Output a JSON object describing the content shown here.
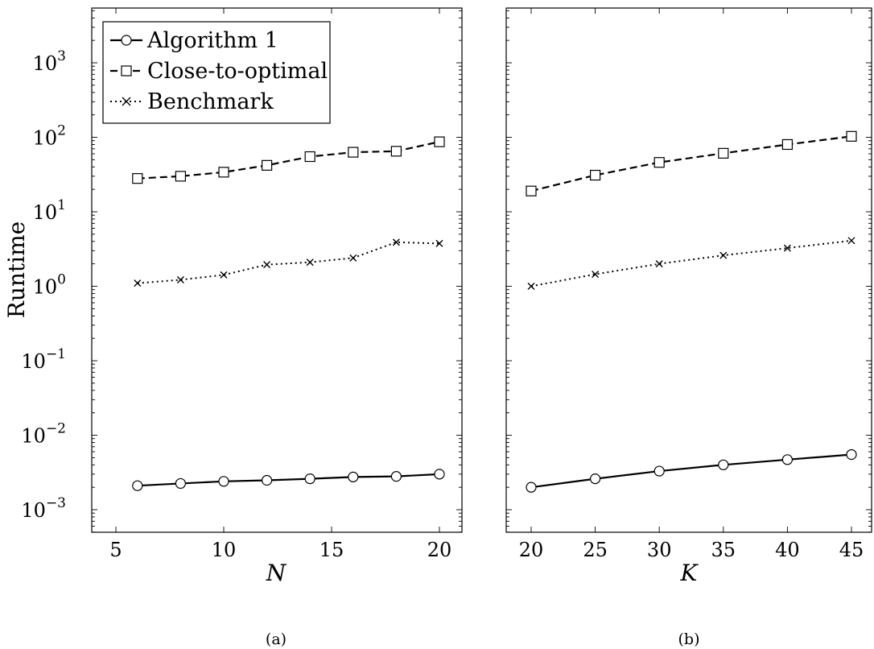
{
  "chart_data": [
    {
      "type": "line",
      "caption": "(a)",
      "xlabel": "N",
      "ylabel": "Runtime",
      "yscale": "log",
      "xlim": [
        4,
        21.5
      ],
      "ylim": [
        0.0003,
        5000
      ],
      "xticks": [
        5,
        10,
        15,
        20
      ],
      "yticks": [
        {
          "base": "10",
          "exp": "3",
          "value": 1000
        },
        {
          "base": "10",
          "exp": "2",
          "value": 100
        },
        {
          "base": "10",
          "exp": "1",
          "value": 10
        },
        {
          "base": "10",
          "exp": "0",
          "value": 1
        },
        {
          "base": "10",
          "exp": "−1",
          "value": 0.1
        },
        {
          "base": "10",
          "exp": "−2",
          "value": 0.01
        },
        {
          "base": "10",
          "exp": "−3",
          "value": 0.001
        }
      ],
      "legend_position": "top-left",
      "x": [
        6,
        8,
        10,
        12,
        14,
        16,
        18,
        20
      ],
      "series": [
        {
          "name": "Algorithm 1",
          "style": "solid",
          "marker": "circle",
          "values": [
            0.0021,
            0.00225,
            0.0024,
            0.00248,
            0.0026,
            0.00275,
            0.0028,
            0.003
          ]
        },
        {
          "name": "Close-to-optimal",
          "style": "dashed",
          "marker": "square",
          "values": [
            28,
            30,
            34,
            42,
            55,
            63,
            65,
            87
          ]
        },
        {
          "name": "Benchmark",
          "style": "dotted",
          "marker": "cross",
          "values": [
            1.1,
            1.22,
            1.42,
            1.95,
            2.1,
            2.4,
            3.9,
            3.75
          ]
        }
      ]
    },
    {
      "type": "line",
      "caption": "(b)",
      "xlabel": "K",
      "ylabel": "",
      "yscale": "log",
      "xlim": [
        18,
        46
      ],
      "ylim": [
        0.0003,
        5000
      ],
      "xticks": [
        20,
        25,
        30,
        35,
        40,
        45
      ],
      "x": [
        20,
        25,
        30,
        35,
        40,
        45
      ],
      "series": [
        {
          "name": "Algorithm 1",
          "style": "solid",
          "marker": "circle",
          "values": [
            0.002,
            0.0026,
            0.0033,
            0.004,
            0.0047,
            0.0055
          ]
        },
        {
          "name": "Close-to-optimal",
          "style": "dashed",
          "marker": "square",
          "values": [
            19,
            31,
            46,
            61,
            80,
            103
          ]
        },
        {
          "name": "Benchmark",
          "style": "dotted",
          "marker": "cross",
          "values": [
            1.0,
            1.45,
            2.0,
            2.6,
            3.25,
            4.1
          ]
        }
      ]
    }
  ]
}
